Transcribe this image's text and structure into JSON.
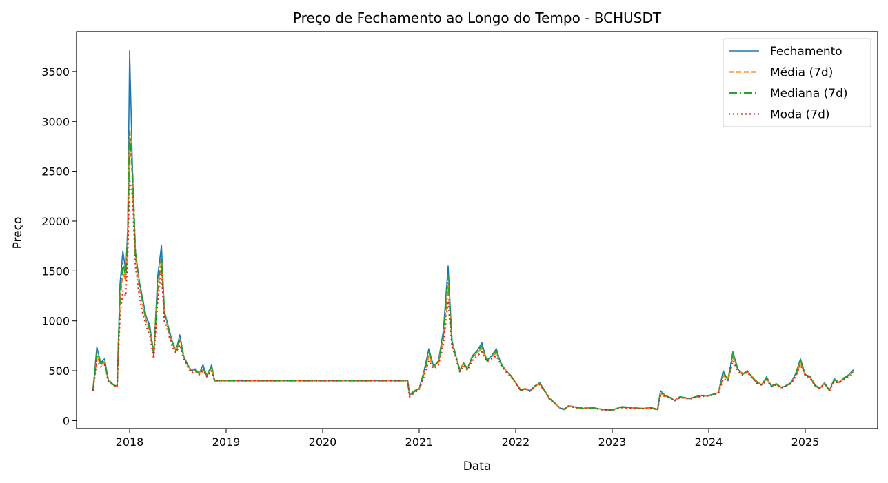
{
  "chart_data": {
    "type": "line",
    "title": "Preço de Fechamento ao Longo do Tempo - BCHUSDT",
    "xlabel": "Data",
    "ylabel": "Preço",
    "xlim": [
      2017.45,
      2025.75
    ],
    "ylim": [
      -80,
      3900
    ],
    "xticks": [
      {
        "value": 2018,
        "label": "2018"
      },
      {
        "value": 2019,
        "label": "2019"
      },
      {
        "value": 2020,
        "label": "2020"
      },
      {
        "value": 2021,
        "label": "2021"
      },
      {
        "value": 2022,
        "label": "2022"
      },
      {
        "value": 2023,
        "label": "2023"
      },
      {
        "value": 2024,
        "label": "2024"
      },
      {
        "value": 2025,
        "label": "2025"
      }
    ],
    "yticks": [
      {
        "value": 0,
        "label": "0"
      },
      {
        "value": 500,
        "label": "500"
      },
      {
        "value": 1000,
        "label": "1000"
      },
      {
        "value": 1500,
        "label": "1500"
      },
      {
        "value": 2000,
        "label": "2000"
      },
      {
        "value": 2500,
        "label": "2500"
      },
      {
        "value": 3000,
        "label": "3000"
      },
      {
        "value": 3500,
        "label": "3500"
      }
    ],
    "grid": false,
    "legend_position": "top-right",
    "x": [
      2017.62,
      2017.66,
      2017.7,
      2017.74,
      2017.78,
      2017.83,
      2017.87,
      2017.9,
      2017.93,
      2017.96,
      2017.98,
      2018.0,
      2018.03,
      2018.06,
      2018.1,
      2018.13,
      2018.17,
      2018.21,
      2018.25,
      2018.29,
      2018.33,
      2018.36,
      2018.4,
      2018.44,
      2018.48,
      2018.52,
      2018.56,
      2018.6,
      2018.64,
      2018.68,
      2018.72,
      2018.76,
      2018.8,
      2018.85,
      2018.88,
      2019.0,
      2019.5,
      2020.0,
      2020.5,
      2020.88,
      2020.9,
      2020.95,
      2021.0,
      2021.05,
      2021.1,
      2021.15,
      2021.2,
      2021.25,
      2021.3,
      2021.34,
      2021.38,
      2021.42,
      2021.46,
      2021.5,
      2021.55,
      2021.6,
      2021.65,
      2021.7,
      2021.75,
      2021.8,
      2021.85,
      2021.9,
      2021.95,
      2022.0,
      2022.05,
      2022.1,
      2022.15,
      2022.2,
      2022.25,
      2022.3,
      2022.35,
      2022.4,
      2022.45,
      2022.5,
      2022.55,
      2022.6,
      2022.7,
      2022.8,
      2022.9,
      2023.0,
      2023.1,
      2023.2,
      2023.3,
      2023.4,
      2023.47,
      2023.5,
      2023.55,
      2023.6,
      2023.65,
      2023.7,
      2023.8,
      2023.9,
      2024.0,
      2024.1,
      2024.15,
      2024.2,
      2024.25,
      2024.3,
      2024.35,
      2024.4,
      2024.45,
      2024.5,
      2024.55,
      2024.6,
      2024.65,
      2024.7,
      2024.75,
      2024.8,
      2024.85,
      2024.9,
      2024.95,
      2025.0,
      2025.05,
      2025.1,
      2025.15,
      2025.2,
      2025.25,
      2025.3,
      2025.35,
      2025.4,
      2025.45,
      2025.5
    ],
    "series": [
      {
        "name": "Fechamento",
        "color": "#1f77b4",
        "dash": "",
        "width": 1.6,
        "values": [
          300,
          740,
          580,
          620,
          400,
          360,
          340,
          1370,
          1700,
          1500,
          1930,
          3710,
          2500,
          1700,
          1400,
          1250,
          1050,
          950,
          650,
          1440,
          1760,
          1100,
          950,
          800,
          700,
          860,
          650,
          560,
          500,
          520,
          470,
          560,
          450,
          560,
          400,
          400,
          400,
          400,
          400,
          400,
          250,
          300,
          320,
          500,
          720,
          540,
          600,
          900,
          1550,
          800,
          650,
          500,
          580,
          520,
          650,
          700,
          780,
          600,
          650,
          720,
          560,
          500,
          450,
          380,
          300,
          320,
          300,
          350,
          380,
          300,
          220,
          180,
          130,
          110,
          150,
          140,
          120,
          130,
          110,
          105,
          140,
          130,
          120,
          130,
          110,
          300,
          250,
          230,
          200,
          240,
          220,
          250,
          250,
          280,
          500,
          400,
          690,
          520,
          460,
          500,
          430,
          380,
          360,
          440,
          340,
          370,
          330,
          350,
          380,
          470,
          620,
          460,
          440,
          350,
          320,
          380,
          300,
          420,
          380,
          430,
          460,
          510
        ]
      },
      {
        "name": "Média (7d)",
        "color": "#ff7f0e",
        "dash": "7,4",
        "width": 2.2,
        "values": [
          300,
          650,
          560,
          580,
          410,
          360,
          340,
          1200,
          1500,
          1400,
          1800,
          2920,
          2400,
          1650,
          1350,
          1200,
          1000,
          900,
          680,
          1300,
          1600,
          1080,
          920,
          780,
          700,
          800,
          640,
          560,
          500,
          510,
          470,
          520,
          450,
          520,
          400,
          400,
          400,
          400,
          400,
          400,
          270,
          290,
          320,
          470,
          650,
          540,
          580,
          820,
          1350,
          780,
          650,
          510,
          570,
          520,
          630,
          680,
          720,
          610,
          640,
          680,
          570,
          500,
          450,
          380,
          310,
          320,
          300,
          345,
          370,
          300,
          225,
          180,
          135,
          115,
          145,
          140,
          125,
          128,
          112,
          108,
          135,
          130,
          122,
          128,
          115,
          270,
          250,
          230,
          205,
          235,
          222,
          245,
          252,
          275,
          450,
          420,
          640,
          520,
          470,
          495,
          440,
          390,
          365,
          420,
          350,
          365,
          335,
          350,
          375,
          450,
          580,
          460,
          440,
          360,
          325,
          370,
          305,
          400,
          385,
          420,
          450,
          490
        ]
      },
      {
        "name": "Mediana (7d)",
        "color": "#2ca02c",
        "dash": "12,4,2,4",
        "width": 2.2,
        "values": [
          300,
          680,
          570,
          600,
          400,
          360,
          340,
          1250,
          1580,
          1450,
          1850,
          2900,
          2500,
          1680,
          1380,
          1220,
          1020,
          920,
          670,
          1350,
          1640,
          1090,
          930,
          790,
          700,
          820,
          645,
          560,
          500,
          515,
          470,
          530,
          450,
          540,
          400,
          400,
          400,
          400,
          400,
          400,
          260,
          295,
          320,
          480,
          690,
          545,
          590,
          850,
          1450,
          790,
          650,
          505,
          575,
          520,
          640,
          690,
          750,
          605,
          645,
          700,
          565,
          500,
          450,
          380,
          305,
          320,
          300,
          348,
          375,
          300,
          222,
          180,
          133,
          113,
          148,
          140,
          123,
          129,
          111,
          107,
          138,
          130,
          121,
          129,
          112,
          285,
          250,
          230,
          203,
          238,
          221,
          248,
          251,
          278,
          480,
          410,
          680,
          520,
          465,
          498,
          435,
          385,
          362,
          430,
          345,
          367,
          332,
          350,
          378,
          460,
          610,
          460,
          440,
          355,
          322,
          375,
          302,
          410,
          383,
          425,
          455,
          500
        ]
      },
      {
        "name": "Moda (7d)",
        "color": "#d62728",
        "dash": "2,4",
        "width": 2.2,
        "values": [
          300,
          600,
          540,
          560,
          390,
          355,
          335,
          1050,
          1300,
          1250,
          1650,
          2420,
          2250,
          1550,
          1250,
          1100,
          950,
          850,
          620,
          1200,
          1500,
          1000,
          880,
          740,
          680,
          760,
          620,
          540,
          480,
          495,
          460,
          500,
          440,
          500,
          400,
          400,
          400,
          400,
          400,
          400,
          240,
          280,
          310,
          440,
          600,
          520,
          560,
          760,
          1200,
          740,
          630,
          490,
          550,
          505,
          600,
          650,
          690,
          590,
          620,
          650,
          550,
          490,
          440,
          370,
          300,
          315,
          295,
          340,
          360,
          295,
          215,
          175,
          130,
          110,
          140,
          135,
          120,
          125,
          108,
          104,
          130,
          127,
          118,
          125,
          110,
          250,
          245,
          225,
          200,
          230,
          218,
          240,
          248,
          270,
          420,
          400,
          600,
          500,
          455,
          485,
          425,
          375,
          355,
          410,
          340,
          360,
          328,
          345,
          370,
          440,
          560,
          450,
          430,
          350,
          318,
          365,
          298,
          390,
          378,
          410,
          440,
          470
        ]
      }
    ]
  }
}
